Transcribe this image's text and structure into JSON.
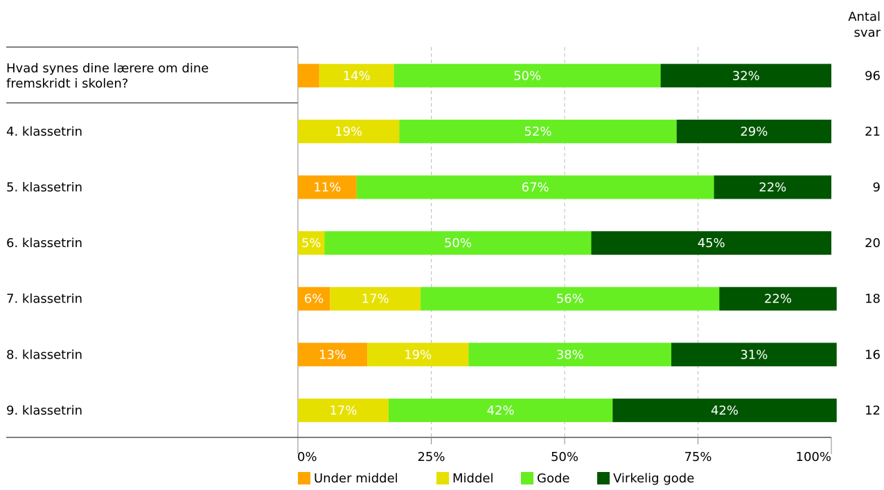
{
  "chart_data": {
    "type": "bar",
    "orientation": "horizontal",
    "stacked": true,
    "count_header": [
      "Antal",
      "svar"
    ],
    "categories": [
      [
        "Hvad synes dine lærere om dine",
        "fremskridt i skolen?"
      ],
      [
        "4. klassetrin"
      ],
      [
        "5. klassetrin"
      ],
      [
        "6. klassetrin"
      ],
      [
        "7. klassetrin"
      ],
      [
        "8. klassetrin"
      ],
      [
        "9. klassetrin"
      ]
    ],
    "counts": [
      "96",
      "21",
      "9",
      "20",
      "18",
      "16",
      "12"
    ],
    "series": [
      {
        "name": "Under middel",
        "color": "#FFA500",
        "values": [
          4,
          0,
          11,
          0,
          6,
          13,
          0
        ]
      },
      {
        "name": "Middel",
        "color": "#E6E000",
        "values": [
          14,
          19,
          0,
          5,
          17,
          19,
          17
        ]
      },
      {
        "name": "Gode",
        "color": "#66EE22",
        "values": [
          50,
          52,
          67,
          50,
          56,
          38,
          42
        ]
      },
      {
        "name": "Virkelig gode",
        "color": "#005500",
        "values": [
          32,
          29,
          22,
          45,
          22,
          31,
          42
        ]
      }
    ],
    "data_labels": [
      [
        "",
        "14%",
        "50%",
        "32%"
      ],
      [
        "",
        "19%",
        "52%",
        "29%"
      ],
      [
        "11%",
        "",
        "67%",
        "22%"
      ],
      [
        "",
        "5%",
        "50%",
        "45%"
      ],
      [
        "6%",
        "17%",
        "56%",
        "22%"
      ],
      [
        "13%",
        "19%",
        "38%",
        "31%"
      ],
      [
        "",
        "17%",
        "42%",
        "42%"
      ]
    ],
    "xlim": [
      0,
      100
    ],
    "xticks": [
      "0%",
      "25%",
      "50%",
      "75%",
      "100%"
    ],
    "grid": "vertical dashed",
    "legend_position": "bottom"
  }
}
